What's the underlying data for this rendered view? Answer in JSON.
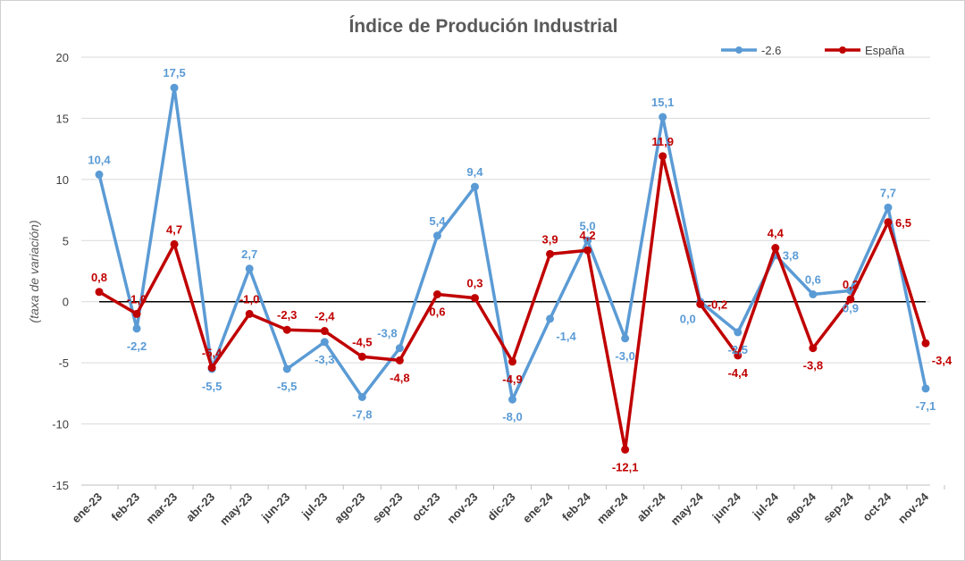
{
  "chart_data": {
    "type": "line",
    "title": "Índice de Produción Industrial",
    "ylabel": "(taxa de variación)",
    "xlabel": "",
    "ylim": [
      -15,
      20
    ],
    "yticks": [
      -15,
      -10,
      -5,
      0,
      5,
      10,
      15,
      20
    ],
    "grid": true,
    "legend_position": "top-right",
    "categories": [
      "ene-23",
      "feb-23",
      "mar-23",
      "abr-23",
      "may-23",
      "jun-23",
      "jul-23",
      "ago-23",
      "sep-23",
      "oct-23",
      "nov-23",
      "dic-23",
      "ene-24",
      "feb-24",
      "mar-24",
      "abr-24",
      "may-24",
      "jun-24",
      "jul-24",
      "ago-24",
      "sep-24",
      "oct-24",
      "nov-24"
    ],
    "series": [
      {
        "name": "-2.6",
        "color": "#5b9bd5",
        "values": [
          10.4,
          -2.2,
          17.5,
          -5.5,
          2.7,
          -5.5,
          -3.3,
          -7.8,
          -3.8,
          5.4,
          9.4,
          -8.0,
          -1.4,
          5.0,
          -3.0,
          15.1,
          0.0,
          -2.5,
          3.8,
          0.6,
          0.9,
          7.7,
          -7.1
        ]
      },
      {
        "name": "España",
        "color": "#c00000",
        "values": [
          0.8,
          -1.0,
          4.7,
          -5.4,
          -1.0,
          -2.3,
          -2.4,
          -4.5,
          -4.8,
          0.6,
          0.3,
          -4.9,
          3.9,
          4.2,
          -12.1,
          11.9,
          -0.2,
          -4.4,
          4.4,
          -3.8,
          0.2,
          6.5,
          -3.4
        ]
      }
    ]
  }
}
